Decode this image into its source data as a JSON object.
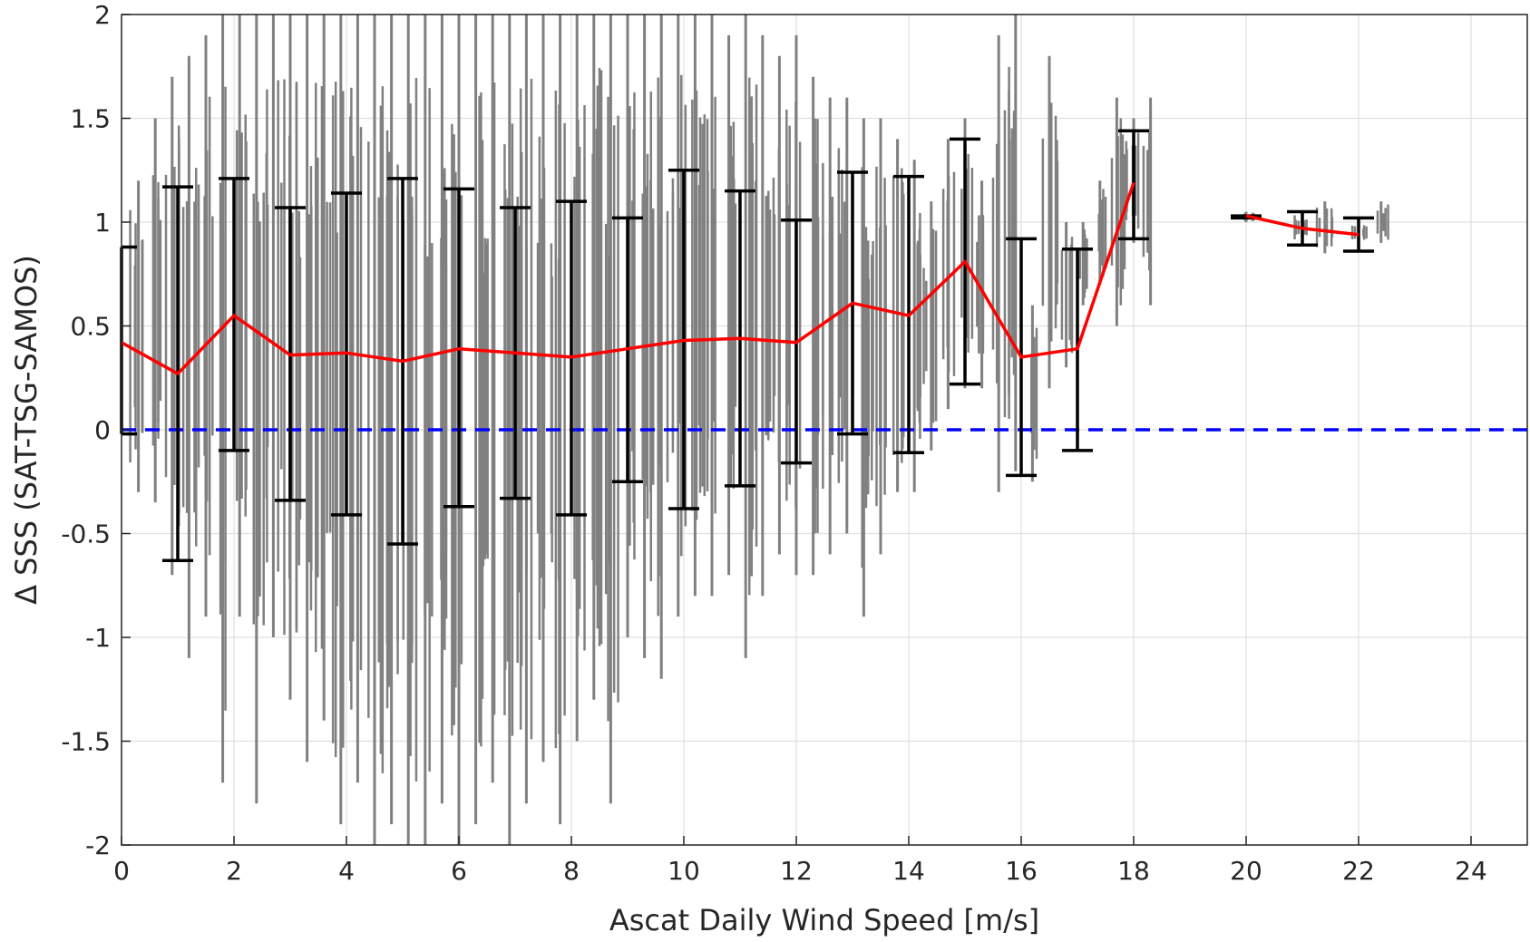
{
  "chart_data": {
    "type": "scatter",
    "xlabel": "Ascat Daily Wind Speed [m/s]",
    "ylabel": "Δ SSS (SAT-TSG-SAMOS)",
    "xlim": [
      0,
      25
    ],
    "ylim": [
      -2,
      2
    ],
    "xticks": [
      0,
      2,
      4,
      6,
      8,
      10,
      12,
      14,
      16,
      18,
      20,
      22,
      24
    ],
    "yticks": [
      -2,
      -1.5,
      -1,
      -0.5,
      0,
      0.5,
      1,
      1.5,
      2
    ],
    "grid": true,
    "colors": {
      "scatter": "#808080",
      "mean": "#ff0000",
      "errorbar": "#000000",
      "zero_line": "#0000ff"
    },
    "scatter_columns": [
      {
        "x": 0.3,
        "lo": -0.3,
        "hi": 1.2
      },
      {
        "x": 0.6,
        "lo": -0.35,
        "hi": 1.5
      },
      {
        "x": 0.9,
        "lo": -0.7,
        "hi": 1.7
      },
      {
        "x": 1.2,
        "lo": -1.1,
        "hi": 1.8
      },
      {
        "x": 1.5,
        "lo": -0.9,
        "hi": 1.9
      },
      {
        "x": 1.8,
        "lo": -1.7,
        "hi": 2.0
      },
      {
        "x": 2.1,
        "lo": -0.9,
        "hi": 2.0
      },
      {
        "x": 2.4,
        "lo": -1.8,
        "hi": 2.0
      },
      {
        "x": 2.7,
        "lo": -1.0,
        "hi": 2.0
      },
      {
        "x": 3.0,
        "lo": -1.3,
        "hi": 2.0
      },
      {
        "x": 3.3,
        "lo": -1.6,
        "hi": 2.0
      },
      {
        "x": 3.6,
        "lo": -1.4,
        "hi": 2.0
      },
      {
        "x": 3.9,
        "lo": -1.9,
        "hi": 2.0
      },
      {
        "x": 4.2,
        "lo": -1.7,
        "hi": 2.0
      },
      {
        "x": 4.5,
        "lo": -2.0,
        "hi": 2.0
      },
      {
        "x": 4.8,
        "lo": -1.9,
        "hi": 2.0
      },
      {
        "x": 5.1,
        "lo": -2.0,
        "hi": 2.0
      },
      {
        "x": 5.4,
        "lo": -2.0,
        "hi": 2.0
      },
      {
        "x": 5.7,
        "lo": -1.8,
        "hi": 2.0
      },
      {
        "x": 6.0,
        "lo": -2.0,
        "hi": 2.0
      },
      {
        "x": 6.3,
        "lo": -1.9,
        "hi": 2.0
      },
      {
        "x": 6.6,
        "lo": -1.7,
        "hi": 2.0
      },
      {
        "x": 6.9,
        "lo": -2.0,
        "hi": 2.0
      },
      {
        "x": 7.2,
        "lo": -1.8,
        "hi": 2.0
      },
      {
        "x": 7.5,
        "lo": -1.6,
        "hi": 2.0
      },
      {
        "x": 7.8,
        "lo": -1.9,
        "hi": 2.0
      },
      {
        "x": 8.1,
        "lo": -1.5,
        "hi": 2.0
      },
      {
        "x": 8.4,
        "lo": -1.3,
        "hi": 2.0
      },
      {
        "x": 8.7,
        "lo": -1.8,
        "hi": 2.0
      },
      {
        "x": 9.0,
        "lo": -1.0,
        "hi": 2.0
      },
      {
        "x": 9.3,
        "lo": -1.1,
        "hi": 2.0
      },
      {
        "x": 9.6,
        "lo": -1.2,
        "hi": 2.0
      },
      {
        "x": 9.9,
        "lo": -0.9,
        "hi": 2.0
      },
      {
        "x": 10.2,
        "lo": -0.8,
        "hi": 2.0
      },
      {
        "x": 10.5,
        "lo": -0.8,
        "hi": 2.0
      },
      {
        "x": 10.8,
        "lo": -0.7,
        "hi": 1.9
      },
      {
        "x": 11.1,
        "lo": -1.1,
        "hi": 2.0
      },
      {
        "x": 11.4,
        "lo": -0.8,
        "hi": 1.9
      },
      {
        "x": 11.7,
        "lo": -0.6,
        "hi": 1.8
      },
      {
        "x": 12.0,
        "lo": -0.7,
        "hi": 1.9
      },
      {
        "x": 12.3,
        "lo": -0.7,
        "hi": 1.7
      },
      {
        "x": 12.6,
        "lo": -0.6,
        "hi": 1.6
      },
      {
        "x": 12.9,
        "lo": -0.5,
        "hi": 1.6
      },
      {
        "x": 13.2,
        "lo": -0.9,
        "hi": 1.5
      },
      {
        "x": 13.5,
        "lo": -0.6,
        "hi": 1.5
      },
      {
        "x": 13.8,
        "lo": -0.3,
        "hi": 1.4
      },
      {
        "x": 14.1,
        "lo": -0.3,
        "hi": 1.3
      },
      {
        "x": 14.4,
        "lo": -0.1,
        "hi": 1.1
      },
      {
        "x": 14.7,
        "lo": 0.1,
        "hi": 1.4
      },
      {
        "x": 15.0,
        "lo": 0.2,
        "hi": 1.5
      },
      {
        "x": 15.3,
        "lo": 0.2,
        "hi": 1.2
      },
      {
        "x": 15.6,
        "lo": -0.3,
        "hi": 1.9
      },
      {
        "x": 15.9,
        "lo": -0.2,
        "hi": 2.0
      },
      {
        "x": 16.2,
        "lo": -0.25,
        "hi": 0.6
      },
      {
        "x": 16.5,
        "lo": 0.2,
        "hi": 1.8
      },
      {
        "x": 16.8,
        "lo": 0.3,
        "hi": 1.0
      },
      {
        "x": 17.1,
        "lo": 0.6,
        "hi": 1.0
      },
      {
        "x": 17.4,
        "lo": 0.7,
        "hi": 1.2
      },
      {
        "x": 17.7,
        "lo": 0.5,
        "hi": 1.6
      },
      {
        "x": 18.0,
        "lo": 0.9,
        "hi": 1.5
      },
      {
        "x": 18.3,
        "lo": 0.6,
        "hi": 1.6
      },
      {
        "x": 20.0,
        "lo": 1.0,
        "hi": 1.05
      },
      {
        "x": 21.0,
        "lo": 0.9,
        "hi": 1.05
      },
      {
        "x": 21.4,
        "lo": 0.85,
        "hi": 1.1
      },
      {
        "x": 22.0,
        "lo": 0.9,
        "hi": 1.0
      },
      {
        "x": 22.4,
        "lo": 0.9,
        "hi": 1.1
      }
    ],
    "mean_line": [
      [
        [
          0,
          0.42
        ],
        [
          1,
          0.27
        ],
        [
          2,
          0.55
        ],
        [
          3,
          0.36
        ],
        [
          4,
          0.37
        ],
        [
          5,
          0.33
        ],
        [
          6,
          0.39
        ],
        [
          7,
          0.37
        ],
        [
          8,
          0.35
        ],
        [
          9,
          0.39
        ],
        [
          10,
          0.43
        ],
        [
          11,
          0.44
        ],
        [
          12,
          0.42
        ],
        [
          13,
          0.61
        ],
        [
          14,
          0.55
        ],
        [
          15,
          0.81
        ],
        [
          16,
          0.35
        ],
        [
          17,
          0.39
        ],
        [
          18,
          1.19
        ]
      ],
      [
        [
          20,
          1.03
        ],
        [
          21,
          0.97
        ],
        [
          22,
          0.94
        ]
      ]
    ],
    "error_bars": [
      {
        "x": 0,
        "lo": -0.02,
        "hi": 0.88
      },
      {
        "x": 1,
        "lo": -0.63,
        "hi": 1.17
      },
      {
        "x": 2,
        "lo": -0.1,
        "hi": 1.21
      },
      {
        "x": 3,
        "lo": -0.34,
        "hi": 1.07
      },
      {
        "x": 4,
        "lo": -0.41,
        "hi": 1.14
      },
      {
        "x": 5,
        "lo": -0.55,
        "hi": 1.21
      },
      {
        "x": 6,
        "lo": -0.37,
        "hi": 1.16
      },
      {
        "x": 7,
        "lo": -0.33,
        "hi": 1.07
      },
      {
        "x": 8,
        "lo": -0.41,
        "hi": 1.1
      },
      {
        "x": 9,
        "lo": -0.25,
        "hi": 1.02
      },
      {
        "x": 10,
        "lo": -0.38,
        "hi": 1.25
      },
      {
        "x": 11,
        "lo": -0.27,
        "hi": 1.15
      },
      {
        "x": 12,
        "lo": -0.16,
        "hi": 1.01
      },
      {
        "x": 13,
        "lo": -0.02,
        "hi": 1.24
      },
      {
        "x": 14,
        "lo": -0.11,
        "hi": 1.22
      },
      {
        "x": 15,
        "lo": 0.22,
        "hi": 1.4
      },
      {
        "x": 16,
        "lo": -0.22,
        "hi": 0.92
      },
      {
        "x": 17,
        "lo": -0.1,
        "hi": 0.87
      },
      {
        "x": 18,
        "lo": 0.92,
        "hi": 1.44
      },
      {
        "x": 20,
        "lo": 1.02,
        "hi": 1.03
      },
      {
        "x": 21,
        "lo": 0.89,
        "hi": 1.05
      },
      {
        "x": 22,
        "lo": 0.86,
        "hi": 1.02
      }
    ],
    "reference_line": {
      "y": 0,
      "style": "dashed"
    }
  }
}
